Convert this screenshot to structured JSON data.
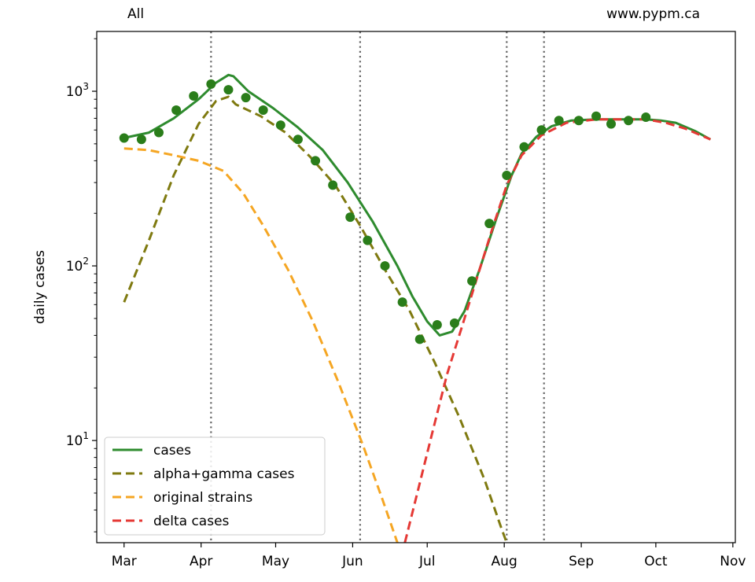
{
  "chart_data": {
    "type": "line",
    "title_left": "All",
    "title_right": "www.pypm.ca",
    "ylabel": "daily cases",
    "yscale": "log",
    "ylim": [
      2.6,
      2200
    ],
    "y_ticks": [
      {
        "value": 10,
        "base": "10",
        "exp": "1"
      },
      {
        "value": 100,
        "base": "10",
        "exp": "2"
      },
      {
        "value": 1000,
        "base": "10",
        "exp": "3"
      }
    ],
    "x_ticks": [
      {
        "label": "Mar",
        "day": 0
      },
      {
        "label": "Apr",
        "day": 31
      },
      {
        "label": "May",
        "day": 61
      },
      {
        "label": "Jun",
        "day": 92
      },
      {
        "label": "Jul",
        "day": 122
      },
      {
        "label": "Aug",
        "day": 153
      },
      {
        "label": "Sep",
        "day": 184
      },
      {
        "label": "Oct",
        "day": 214
      },
      {
        "label": "Nov",
        "day": 245
      }
    ],
    "xlim": [
      -11,
      246
    ],
    "vertical_lines": [
      35,
      95,
      154,
      169
    ],
    "series": [
      {
        "name": "cases",
        "color": "#2e8b2e",
        "style": "solid",
        "points": [
          [
            0,
            540
          ],
          [
            10,
            580
          ],
          [
            20,
            700
          ],
          [
            30,
            900
          ],
          [
            37,
            1120
          ],
          [
            42,
            1240
          ],
          [
            44,
            1220
          ],
          [
            50,
            1000
          ],
          [
            60,
            800
          ],
          [
            70,
            620
          ],
          [
            80,
            460
          ],
          [
            90,
            300
          ],
          [
            100,
            180
          ],
          [
            110,
            100
          ],
          [
            116,
            67
          ],
          [
            122,
            48
          ],
          [
            127,
            40
          ],
          [
            132,
            42
          ],
          [
            137,
            55
          ],
          [
            143,
            95
          ],
          [
            150,
            190
          ],
          [
            156,
            330
          ],
          [
            160,
            440
          ],
          [
            166,
            550
          ],
          [
            172,
            630
          ],
          [
            180,
            680
          ],
          [
            190,
            690
          ],
          [
            200,
            690
          ],
          [
            210,
            690
          ],
          [
            216,
            680
          ],
          [
            222,
            660
          ],
          [
            230,
            590
          ],
          [
            236,
            530
          ]
        ]
      },
      {
        "name": "alpha+gamma cases",
        "color": "#7f7a10",
        "style": "dashed",
        "points": [
          [
            0,
            62
          ],
          [
            10,
            140
          ],
          [
            20,
            330
          ],
          [
            30,
            650
          ],
          [
            37,
            880
          ],
          [
            42,
            930
          ],
          [
            45,
            840
          ],
          [
            55,
            720
          ],
          [
            65,
            580
          ],
          [
            75,
            420
          ],
          [
            85,
            290
          ],
          [
            95,
            170
          ],
          [
            105,
            95
          ],
          [
            115,
            55
          ],
          [
            125,
            28
          ],
          [
            135,
            13.5
          ],
          [
            145,
            6
          ],
          [
            152,
            3.1
          ],
          [
            154,
            2.6
          ]
        ]
      },
      {
        "name": "original strains",
        "color": "#f5a623",
        "style": "dashed",
        "points": [
          [
            0,
            470
          ],
          [
            10,
            460
          ],
          [
            20,
            430
          ],
          [
            30,
            400
          ],
          [
            40,
            350
          ],
          [
            48,
            260
          ],
          [
            56,
            170
          ],
          [
            66,
            95
          ],
          [
            76,
            48
          ],
          [
            86,
            22
          ],
          [
            96,
            9.5
          ],
          [
            104,
            4.6
          ],
          [
            110,
            2.6
          ]
        ]
      },
      {
        "name": "delta cases",
        "color": "#e53935",
        "style": "dashed",
        "points": [
          [
            113,
            2.6
          ],
          [
            118,
            5
          ],
          [
            124,
            11
          ],
          [
            130,
            24
          ],
          [
            136,
            45
          ],
          [
            142,
            85
          ],
          [
            148,
            160
          ],
          [
            154,
            290
          ],
          [
            160,
            430
          ],
          [
            168,
            560
          ],
          [
            178,
            660
          ],
          [
            190,
            690
          ],
          [
            200,
            690
          ],
          [
            210,
            690
          ],
          [
            218,
            660
          ],
          [
            226,
            610
          ],
          [
            236,
            530
          ]
        ]
      }
    ],
    "observations": {
      "name": "observed",
      "color": "#2a7d1a",
      "points": [
        [
          0,
          540
        ],
        [
          7,
          530
        ],
        [
          14,
          580
        ],
        [
          21,
          780
        ],
        [
          28,
          940
        ],
        [
          35,
          1100
        ],
        [
          42,
          1020
        ],
        [
          49,
          920
        ],
        [
          56,
          780
        ],
        [
          63,
          640
        ],
        [
          70,
          530
        ],
        [
          77,
          400
        ],
        [
          84,
          290
        ],
        [
          91,
          190
        ],
        [
          98,
          140
        ],
        [
          105,
          100
        ],
        [
          112,
          62
        ],
        [
          119,
          38
        ],
        [
          126,
          46
        ],
        [
          133,
          47
        ],
        [
          140,
          82
        ],
        [
          147,
          175
        ],
        [
          154,
          330
        ],
        [
          161,
          480
        ],
        [
          168,
          600
        ],
        [
          175,
          680
        ],
        [
          183,
          680
        ],
        [
          190,
          720
        ],
        [
          196,
          650
        ],
        [
          203,
          680
        ],
        [
          210,
          710
        ]
      ]
    },
    "legend_position": "lower-left"
  }
}
